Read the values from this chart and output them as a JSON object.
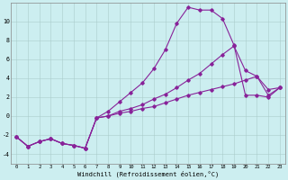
{
  "xlabel": "Windchill (Refroidissement éolien,°C)",
  "background_color": "#cceef0",
  "grid_color": "#aacccc",
  "line_color": "#882299",
  "x_ticks": [
    0,
    1,
    2,
    3,
    4,
    5,
    6,
    7,
    8,
    9,
    10,
    11,
    12,
    13,
    14,
    15,
    16,
    17,
    18,
    19,
    20,
    21,
    22,
    23
  ],
  "y_ticks": [
    -4,
    -2,
    0,
    2,
    4,
    6,
    8,
    10
  ],
  "xlim": [
    -0.5,
    23.5
  ],
  "ylim": [
    -5.0,
    12.0
  ],
  "line1": {
    "x": [
      0,
      1,
      2,
      3,
      4,
      5,
      6,
      7,
      8,
      9,
      10,
      11,
      12,
      13,
      14,
      15,
      16,
      17,
      18,
      19,
      20,
      21,
      22,
      23
    ],
    "y": [
      -2.2,
      -3.2,
      -2.7,
      -2.4,
      -2.9,
      -3.1,
      -3.4,
      -0.2,
      0.5,
      1.5,
      2.5,
      3.5,
      5.0,
      7.0,
      9.8,
      11.5,
      11.2,
      11.2,
      10.3,
      7.5,
      2.2,
      2.2,
      2.0,
      3.0
    ]
  },
  "line2": {
    "x": [
      0,
      1,
      2,
      3,
      4,
      5,
      6,
      7,
      8,
      9,
      10,
      11,
      12,
      13,
      14,
      15,
      16,
      17,
      18,
      19,
      20,
      21,
      22,
      23
    ],
    "y": [
      -2.2,
      -3.2,
      -2.7,
      -2.4,
      -2.9,
      -3.1,
      -3.4,
      -0.2,
      0.0,
      0.5,
      0.8,
      1.2,
      1.8,
      2.3,
      3.0,
      3.8,
      4.5,
      5.5,
      6.5,
      7.4,
      4.8,
      4.2,
      2.2,
      3.0
    ]
  },
  "line3": {
    "x": [
      0,
      1,
      2,
      3,
      4,
      5,
      6,
      7,
      8,
      9,
      10,
      11,
      12,
      13,
      14,
      15,
      16,
      17,
      18,
      19,
      20,
      21,
      22,
      23
    ],
    "y": [
      -2.2,
      -3.2,
      -2.7,
      -2.4,
      -2.9,
      -3.1,
      -3.4,
      -0.2,
      0.0,
      0.3,
      0.5,
      0.8,
      1.0,
      1.4,
      1.8,
      2.2,
      2.5,
      2.8,
      3.1,
      3.4,
      3.8,
      4.2,
      2.8,
      3.0
    ]
  }
}
